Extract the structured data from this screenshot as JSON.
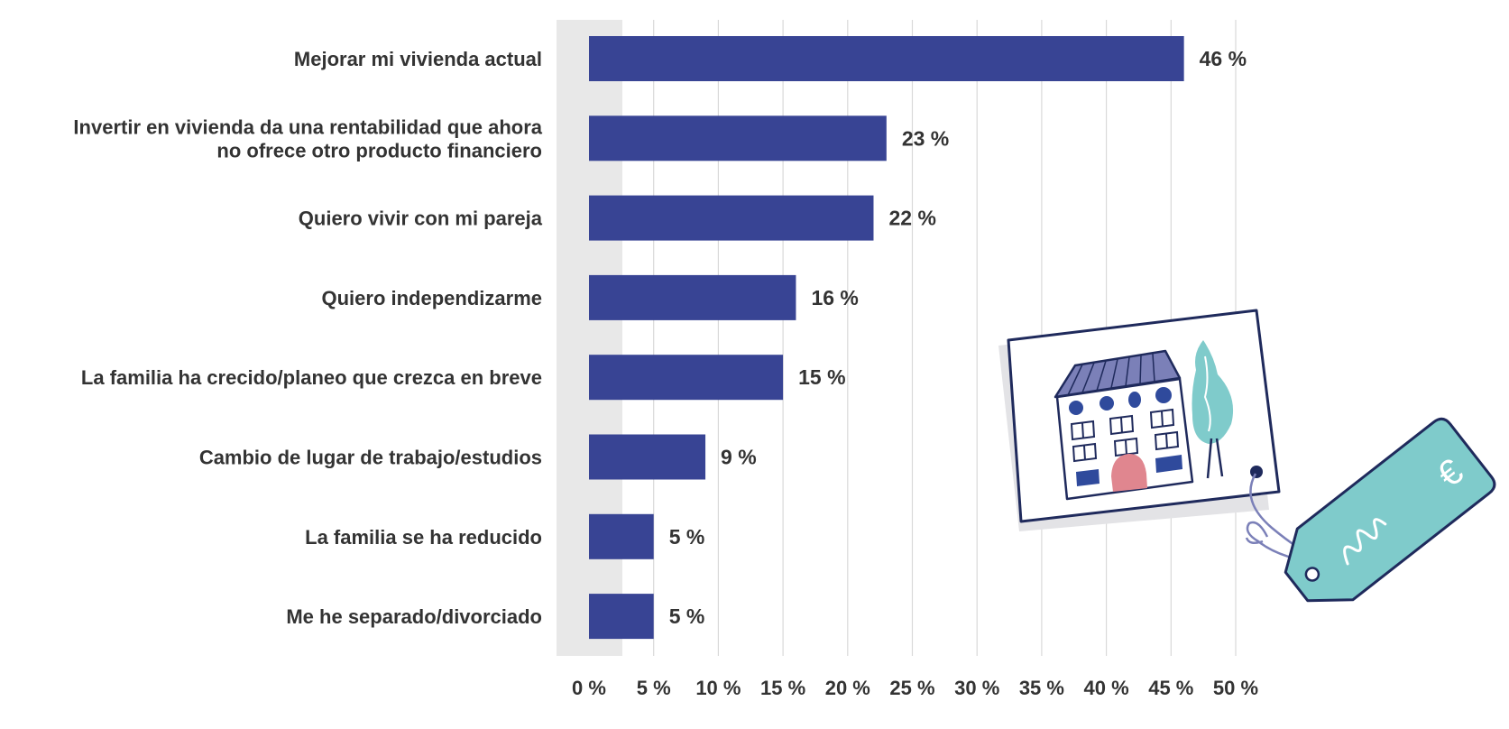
{
  "colors": {
    "bar": "#384494",
    "grid": "#d9d9d9",
    "band": "#e8e8e8",
    "text": "#333333",
    "illustration_navy": "#1f2a5c",
    "illustration_teal": "#7fcbcb",
    "illustration_roof": "#7b80b8",
    "illustration_door": "#e0868f",
    "illustration_window": "#2f4a9c"
  },
  "chart_data": {
    "type": "bar",
    "orientation": "horizontal",
    "categories": [
      [
        "Mejorar mi vivienda actual"
      ],
      [
        "Invertir en vivienda da una rentabilidad que ahora",
        "no ofrece otro producto financiero"
      ],
      [
        "Quiero vivir con mi pareja"
      ],
      [
        "Quiero independizarme"
      ],
      [
        "La familia ha crecido/planeo que crezca en breve"
      ],
      [
        "Cambio de lugar de trabajo/estudios"
      ],
      [
        "La familia se ha reducido"
      ],
      [
        "Me he separado/divorciado"
      ]
    ],
    "values": [
      46,
      23,
      22,
      16,
      15,
      9,
      5,
      5
    ],
    "value_labels": [
      "46 %",
      "23 %",
      "22 %",
      "16 %",
      "15 %",
      "9 %",
      "5 %",
      "5 %"
    ],
    "x_ticks": [
      0,
      5,
      10,
      15,
      20,
      25,
      30,
      35,
      40,
      45,
      50
    ],
    "x_tick_labels": [
      "0 %",
      "5 %",
      "10 %",
      "15 %",
      "20 %",
      "25 %",
      "30 %",
      "35 %",
      "40 %",
      "45 %",
      "50 %"
    ],
    "xlim": [
      0,
      50
    ],
    "title": "",
    "xlabel": "",
    "ylabel": "",
    "grid": "vertical",
    "legend": "none"
  },
  "illustration": {
    "icon": "house-for-sale-card-with-euro-price-tag-icon",
    "tag_symbol": "€"
  }
}
